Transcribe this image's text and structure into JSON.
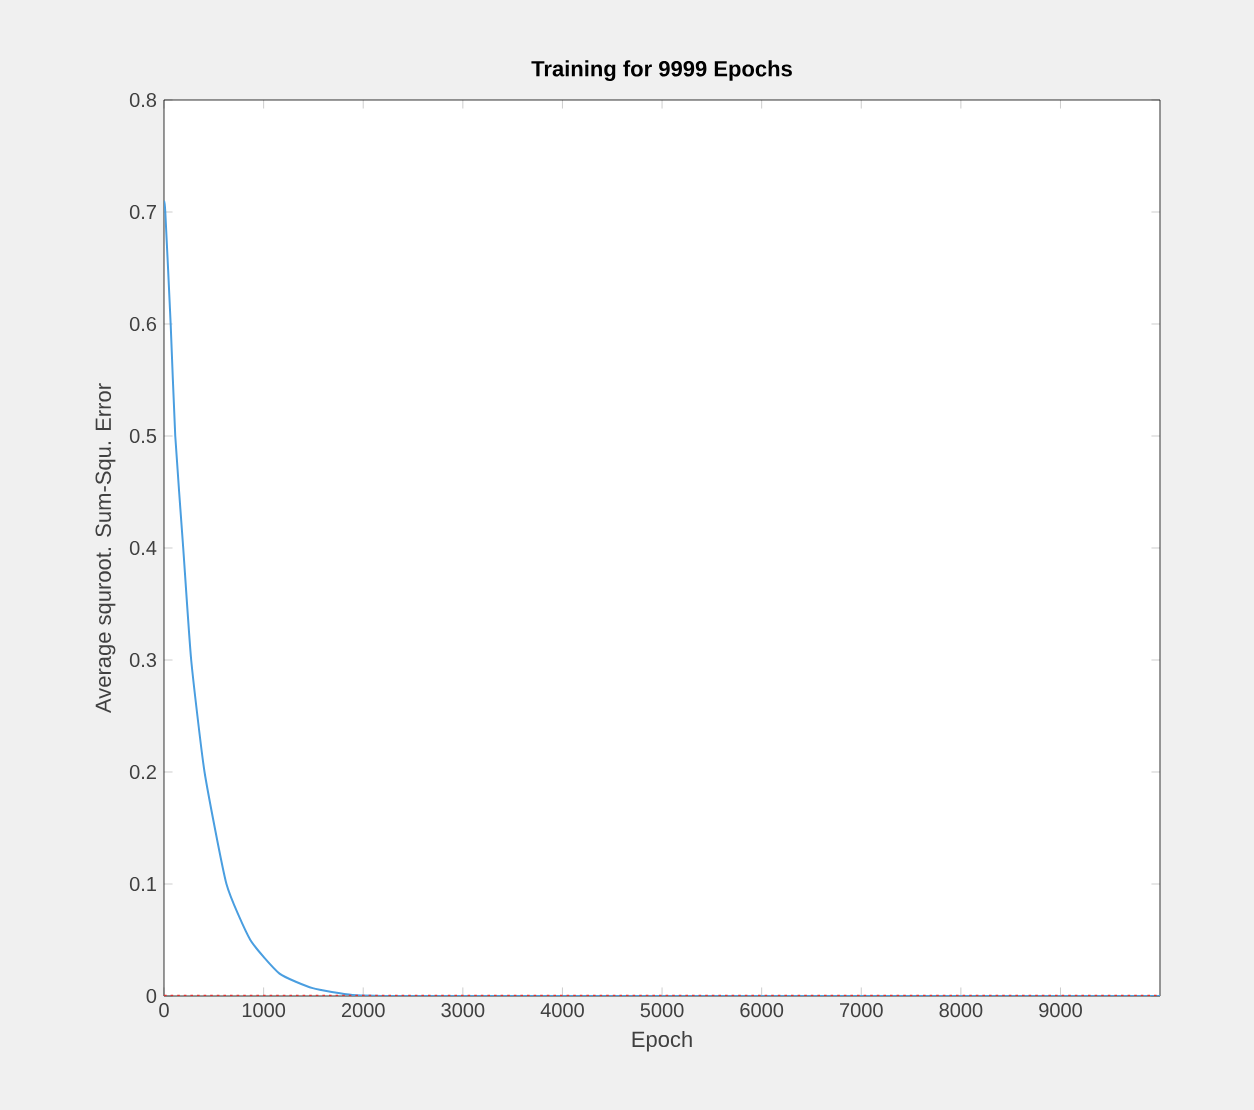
{
  "chart_data": {
    "type": "line",
    "title": "Training for 9999 Epochs",
    "xlabel": "Epoch",
    "ylabel": "Average squroot. Sum-Squ. Error",
    "xlim": [
      0,
      9999
    ],
    "ylim": [
      0,
      0.8
    ],
    "xticks": [
      0,
      1000,
      2000,
      3000,
      4000,
      5000,
      6000,
      7000,
      8000,
      9000
    ],
    "yticks": [
      0,
      0.1,
      0.2,
      0.3,
      0.4,
      0.5,
      0.6,
      0.7,
      0.8
    ],
    "grid": false,
    "line_style": "solid",
    "series": [
      {
        "color": "#4a9ee0",
        "x": [
          0,
          13,
          67,
          113,
          193,
          273,
          407,
          627,
          867,
          1160,
          1493,
          1893,
          2500,
          5000,
          9999
        ],
        "values": [
          0.71,
          0.7,
          0.6,
          0.5,
          0.4,
          0.3,
          0.2,
          0.1,
          0.05,
          0.02,
          0.007,
          0.001,
          0,
          0,
          0
        ]
      }
    ],
    "ref_lines": [
      {
        "axis": "y",
        "value": 0,
        "color": "#e03030",
        "line_style": "dotted"
      }
    ]
  }
}
